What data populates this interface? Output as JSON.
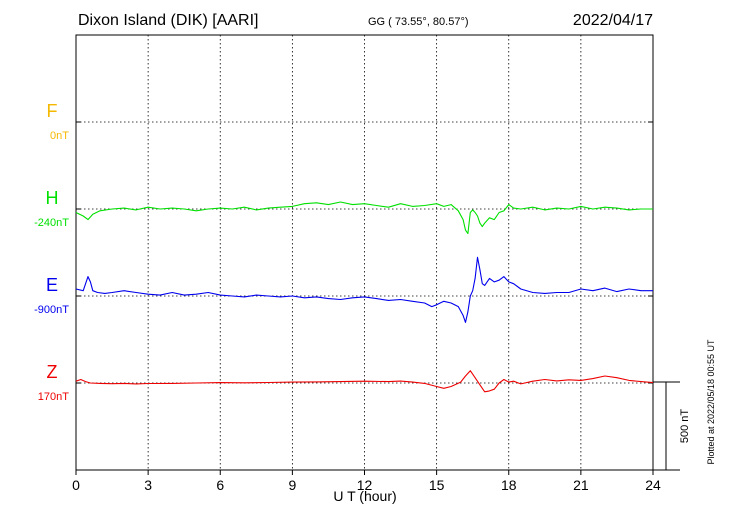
{
  "header": {
    "station": "Dixon Island (DIK)  [AARI]",
    "coords": "GG ( 73.55°,  80.57°)",
    "date": "2022/04/17"
  },
  "footer": {
    "plotted": "Plotted at 2022/05/18 00:55 UT"
  },
  "chart_data": {
    "type": "line",
    "xlabel": "U T (hour)",
    "xlim": [
      0,
      24
    ],
    "xticks": [
      "0",
      "3",
      "6",
      "9",
      "12",
      "15",
      "18",
      "21",
      "24"
    ],
    "scale_bar": {
      "label": "500 nT",
      "value": 500
    },
    "colors": {
      "F": "#f5b800",
      "H": "#00e000",
      "E": "#0000ee",
      "Z": "#ee0000"
    },
    "series": [
      {
        "name": "F",
        "baseline_label": "0nT",
        "color": "#f5b800",
        "baseline": 0,
        "x": [],
        "y": []
      },
      {
        "name": "H",
        "baseline_label": "-240nT",
        "color": "#00e000",
        "baseline": -240,
        "x": [
          0.0,
          0.3,
          0.5,
          0.7,
          1.0,
          1.5,
          2.0,
          2.5,
          3.0,
          3.5,
          4.0,
          4.5,
          5.0,
          5.5,
          6.0,
          6.5,
          7.0,
          7.5,
          8.0,
          8.5,
          9.0,
          9.5,
          10.0,
          10.5,
          11.0,
          11.5,
          12.0,
          12.5,
          13.0,
          13.5,
          14.0,
          14.5,
          15.0,
          15.3,
          15.6,
          15.9,
          16.1,
          16.2,
          16.3,
          16.4,
          16.5,
          16.6,
          16.7,
          16.8,
          16.9,
          17.0,
          17.2,
          17.4,
          17.6,
          17.8,
          18.0,
          18.2,
          18.5,
          19.0,
          19.5,
          20.0,
          20.5,
          21.0,
          21.5,
          22.0,
          22.5,
          23.0,
          23.5,
          24.0
        ],
        "y": [
          -260,
          -280,
          -300,
          -270,
          -250,
          -240,
          -235,
          -245,
          -230,
          -240,
          -235,
          -240,
          -250,
          -240,
          -235,
          -240,
          -230,
          -245,
          -235,
          -230,
          -225,
          -210,
          -205,
          -215,
          -200,
          -215,
          -210,
          -220,
          -230,
          -210,
          -225,
          -220,
          -210,
          -225,
          -215,
          -250,
          -300,
          -360,
          -380,
          -260,
          -245,
          -260,
          -280,
          -320,
          -340,
          -320,
          -290,
          -300,
          -260,
          -250,
          -215,
          -235,
          -240,
          -230,
          -245,
          -235,
          -240,
          -225,
          -240,
          -230,
          -235,
          -245,
          -240,
          -240
        ]
      },
      {
        "name": "E",
        "baseline_label": "-900nT",
        "color": "#0000ee",
        "baseline": -900,
        "x": [
          0.0,
          0.3,
          0.5,
          0.6,
          0.7,
          0.9,
          1.2,
          1.5,
          2.0,
          2.5,
          3.0,
          3.5,
          4.0,
          4.5,
          5.0,
          5.5,
          6.0,
          6.5,
          7.0,
          7.5,
          8.0,
          8.5,
          9.0,
          9.5,
          10.0,
          10.5,
          11.0,
          11.5,
          12.0,
          12.5,
          13.0,
          13.5,
          14.0,
          14.5,
          14.8,
          15.0,
          15.3,
          15.6,
          15.9,
          16.1,
          16.2,
          16.3,
          16.4,
          16.5,
          16.6,
          16.7,
          16.8,
          16.9,
          17.0,
          17.2,
          17.4,
          17.6,
          17.8,
          18.0,
          18.2,
          18.5,
          19.0,
          19.5,
          20.0,
          20.5,
          21.0,
          21.5,
          22.0,
          22.5,
          23.0,
          23.5,
          24.0
        ],
        "y": [
          -860,
          -870,
          -790,
          -820,
          -870,
          -880,
          -885,
          -880,
          -870,
          -880,
          -890,
          -895,
          -880,
          -895,
          -890,
          -880,
          -895,
          -900,
          -905,
          -895,
          -900,
          -905,
          -900,
          -910,
          -905,
          -915,
          -920,
          -910,
          -905,
          -915,
          -925,
          -920,
          -930,
          -940,
          -960,
          -950,
          -930,
          -940,
          -960,
          -1010,
          -1050,
          -990,
          -900,
          -870,
          -800,
          -680,
          -750,
          -830,
          -840,
          -800,
          -820,
          -810,
          -790,
          -820,
          -830,
          -860,
          -880,
          -885,
          -880,
          -880,
          -860,
          -870,
          -855,
          -875,
          -860,
          -870,
          -870
        ]
      },
      {
        "name": "Z",
        "baseline_label": "170nT",
        "color": "#ee0000",
        "baseline": 170,
        "x": [
          0.0,
          0.2,
          0.4,
          0.6,
          1.0,
          1.5,
          2.0,
          2.5,
          3.0,
          4.0,
          5.0,
          6.0,
          7.0,
          8.0,
          9.0,
          10.0,
          11.0,
          12.0,
          13.0,
          13.5,
          14.0,
          14.5,
          15.0,
          15.3,
          15.6,
          16.0,
          16.2,
          16.4,
          16.6,
          16.8,
          17.0,
          17.2,
          17.4,
          17.6,
          17.8,
          18.0,
          18.2,
          18.5,
          19.0,
          19.5,
          20.0,
          20.5,
          21.0,
          21.5,
          22.0,
          22.5,
          23.0,
          23.5,
          24.0
        ],
        "y": [
          180,
          190,
          178,
          170,
          168,
          166,
          168,
          165,
          167,
          168,
          170,
          172,
          171,
          173,
          175,
          176,
          178,
          180,
          178,
          181,
          175,
          168,
          150,
          140,
          150,
          175,
          210,
          240,
          200,
          160,
          120,
          125,
          135,
          170,
          190,
          175,
          180,
          165,
          180,
          190,
          182,
          188,
          185,
          195,
          210,
          200,
          185,
          178,
          172
        ]
      }
    ]
  }
}
